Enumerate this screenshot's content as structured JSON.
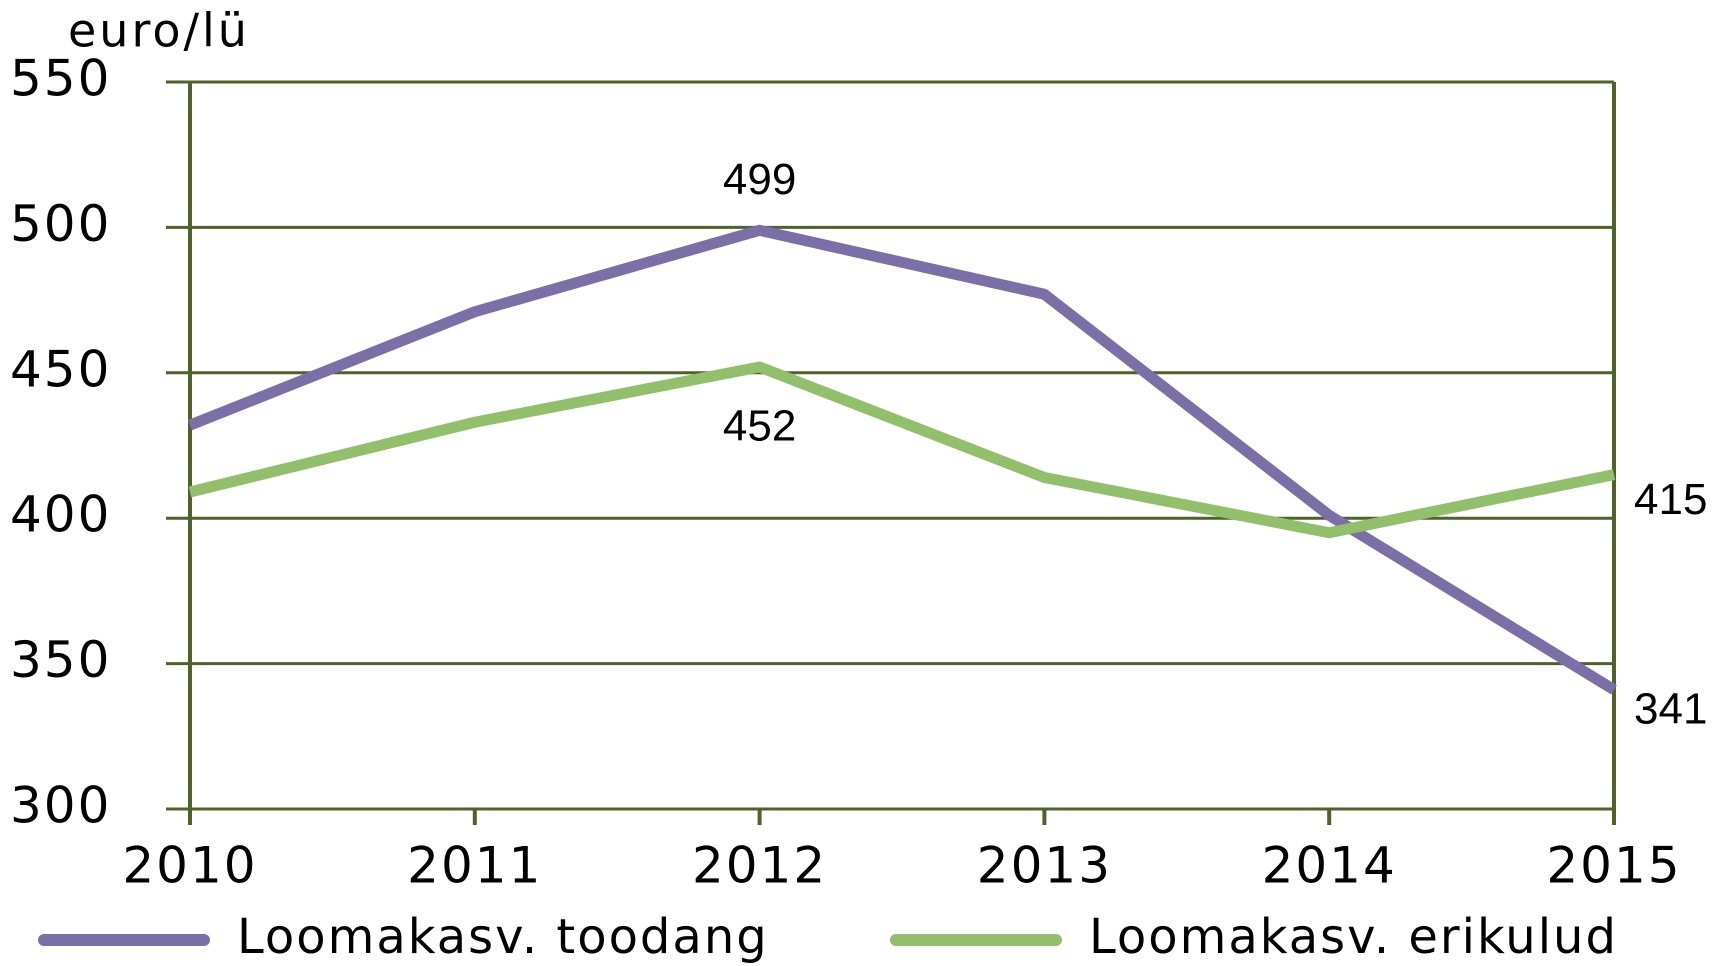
{
  "chart_data": {
    "type": "line",
    "y_axis_label": "euro/lü",
    "categories": [
      "2010",
      "2011",
      "2012",
      "2013",
      "2014",
      "2015"
    ],
    "series": [
      {
        "name": "Loomakasv. toodang",
        "color": "#7b6fa8",
        "values": [
          432,
          471,
          499,
          477,
          401,
          341
        ],
        "value_labels": [
          null,
          null,
          "499",
          null,
          null,
          "341"
        ]
      },
      {
        "name": "Loomakasv. erikulud",
        "color": "#92c06a",
        "values": [
          409,
          433,
          452,
          414,
          395,
          415
        ],
        "value_labels": [
          null,
          null,
          "452",
          null,
          null,
          "415"
        ]
      }
    ],
    "ylim": [
      300,
      550
    ],
    "yticks": [
      300,
      350,
      400,
      450,
      500,
      550
    ],
    "grid": true,
    "legend": "bottom"
  }
}
